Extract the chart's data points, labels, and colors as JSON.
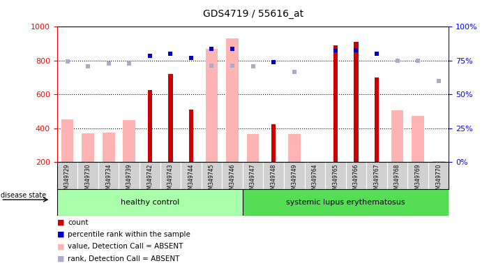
{
  "title": "GDS4719 / 55616_at",
  "samples": [
    "GSM349729",
    "GSM349730",
    "GSM349734",
    "GSM349739",
    "GSM349742",
    "GSM349743",
    "GSM349744",
    "GSM349745",
    "GSM349746",
    "GSM349747",
    "GSM349748",
    "GSM349749",
    "GSM349764",
    "GSM349765",
    "GSM349766",
    "GSM349767",
    "GSM349768",
    "GSM349769",
    "GSM349770"
  ],
  "healthy_count": 9,
  "groups": [
    "healthy control",
    "systemic lupus erythematosus"
  ],
  "red_bars": [
    null,
    null,
    null,
    null,
    625,
    720,
    510,
    null,
    null,
    null,
    425,
    null,
    null,
    890,
    910,
    700,
    null,
    null,
    null
  ],
  "pink_bars": [
    455,
    370,
    375,
    450,
    null,
    null,
    null,
    870,
    930,
    365,
    null,
    365,
    null,
    null,
    null,
    null,
    505,
    475,
    205
  ],
  "blue_squares": [
    null,
    null,
    null,
    null,
    830,
    840,
    815,
    870,
    870,
    null,
    790,
    null,
    null,
    860,
    860,
    840,
    null,
    null,
    null
  ],
  "light_blue_squares": [
    795,
    765,
    785,
    783,
    null,
    null,
    null,
    770,
    770,
    765,
    null,
    735,
    null,
    null,
    null,
    null,
    800,
    800,
    680
  ],
  "ylim_left": [
    200,
    1000
  ],
  "ylim_right": [
    0,
    100
  ],
  "yticks_left": [
    200,
    400,
    600,
    800,
    1000
  ],
  "yticks_right": [
    0,
    25,
    50,
    75,
    100
  ],
  "red_color": "#cc0000",
  "pink_color": "#ffb3b3",
  "blue_color": "#0000cc",
  "light_blue_color": "#aaaacc",
  "healthy_group_color": "#aaffaa",
  "lupus_group_color": "#55dd55",
  "gray_tick_bg": "#d0d0d0",
  "legend_items": [
    {
      "color": "#cc0000",
      "label": "count"
    },
    {
      "color": "#0000cc",
      "label": "percentile rank within the sample"
    },
    {
      "color": "#ffb3b3",
      "label": "value, Detection Call = ABSENT"
    },
    {
      "color": "#aaaacc",
      "label": "rank, Detection Call = ABSENT"
    }
  ]
}
